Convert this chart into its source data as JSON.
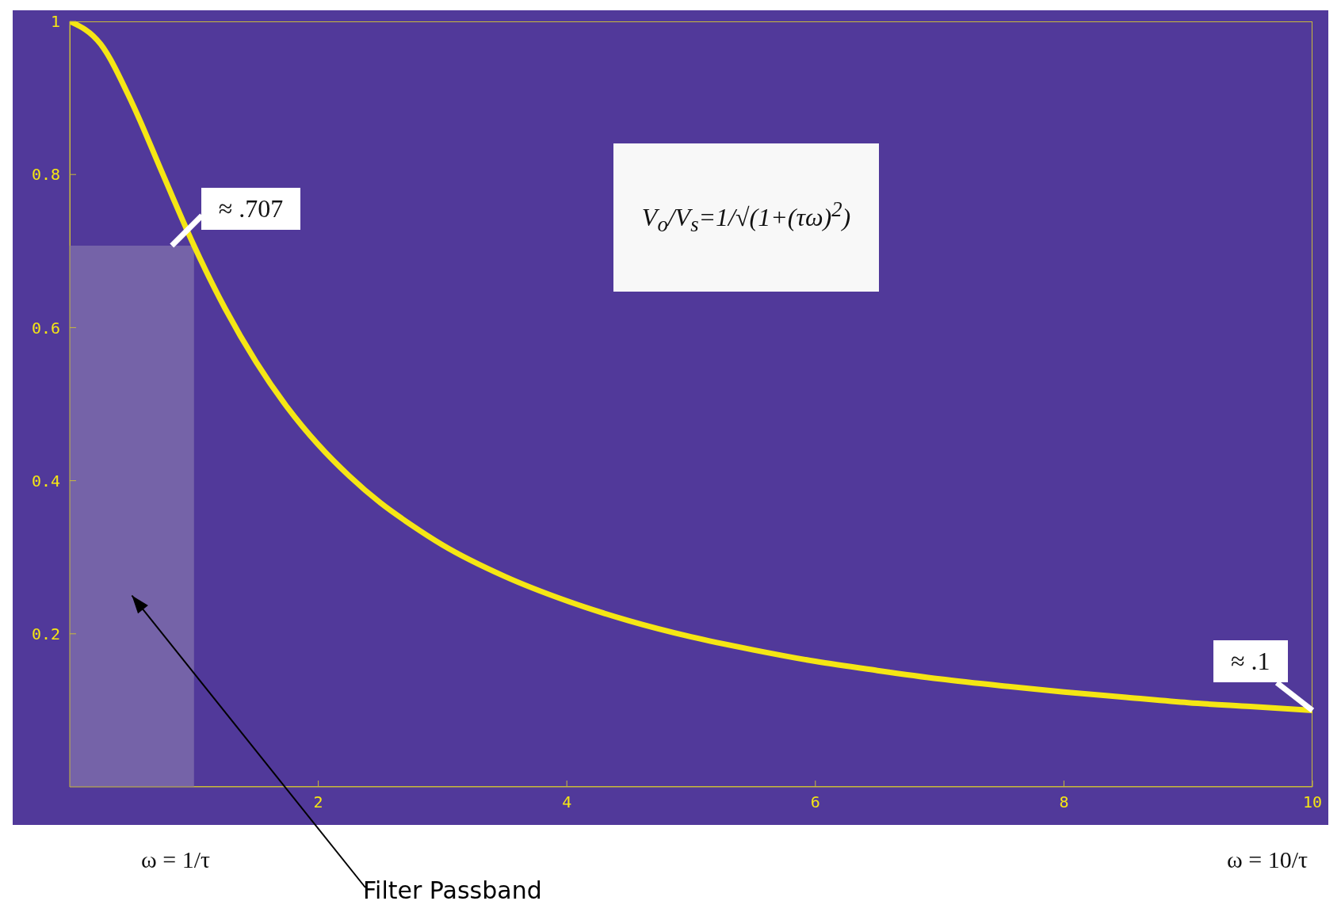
{
  "chart_data": {
    "type": "line",
    "x": [
      0,
      0.25,
      0.5,
      0.75,
      1,
      1.25,
      1.5,
      1.75,
      2,
      2.25,
      2.5,
      2.75,
      3,
      3.5,
      4,
      4.5,
      5,
      5.5,
      6,
      6.5,
      7,
      7.5,
      8,
      8.5,
      9,
      9.5,
      10
    ],
    "series": [
      {
        "color": "#f5e614",
        "values": [
          1,
          0.97,
          0.894,
          0.8,
          0.707,
          0.625,
          0.555,
          0.496,
          0.447,
          0.406,
          0.371,
          0.342,
          0.316,
          0.275,
          0.243,
          0.217,
          0.196,
          0.179,
          0.164,
          0.152,
          0.141,
          0.132,
          0.124,
          0.117,
          0.11,
          0.105,
          0.1
        ]
      }
    ],
    "xlim": [
      0,
      10
    ],
    "xticks": [
      2,
      4,
      6,
      8,
      10
    ],
    "ylim": [
      0,
      1
    ],
    "yticks": [
      {
        "value": 0.2,
        "label": "0.2"
      },
      {
        "value": 0.4,
        "label": "0.4"
      },
      {
        "value": 0.6,
        "label": "0.6"
      },
      {
        "value": 0.8,
        "label": "0.8"
      },
      1
    ],
    "marker": "none",
    "line_style": "solid",
    "bands": [
      {
        "axis": "x",
        "from": 0,
        "to": 1,
        "label": "Filter Passband",
        "color": "#7563a8"
      }
    ],
    "annotations": [
      {
        "text": "≈ .707",
        "x": 1,
        "y": 0.707
      },
      {
        "text": "≈ .1",
        "x": 10,
        "y": 0.1
      },
      "V$_{o}$/V$_{s}$=1/√(1+(τω)$^{2}$)",
      "ω = 1/τ",
      "ω = 10/τ"
    ]
  }
}
